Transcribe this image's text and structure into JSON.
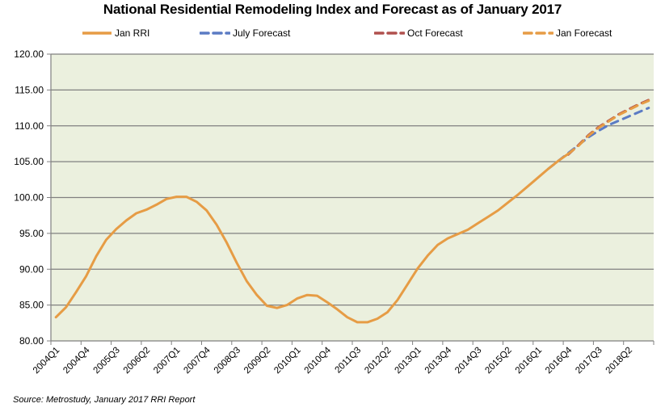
{
  "chart_data": {
    "type": "line",
    "title": "National Residential Remodeling Index and Forecast as of January 2017",
    "xlabel": "",
    "ylabel": "",
    "ylim": [
      80,
      120
    ],
    "yticks": [
      "80.00",
      "85.00",
      "90.00",
      "95.00",
      "100.00",
      "105.00",
      "110.00",
      "115.00",
      "120.00"
    ],
    "ytick_values": [
      80,
      85,
      90,
      95,
      100,
      105,
      110,
      115,
      120
    ],
    "grid": true,
    "legend_position": "top",
    "categories": [
      "2004Q1",
      "2004Q2",
      "2004Q3",
      "2004Q4",
      "2005Q1",
      "2005Q2",
      "2005Q3",
      "2005Q4",
      "2006Q1",
      "2006Q2",
      "2006Q3",
      "2006Q4",
      "2007Q1",
      "2007Q2",
      "2007Q3",
      "2007Q4",
      "2008Q1",
      "2008Q2",
      "2008Q3",
      "2008Q4",
      "2009Q1",
      "2009Q2",
      "2009Q3",
      "2009Q4",
      "2010Q1",
      "2010Q2",
      "2010Q3",
      "2010Q4",
      "2011Q1",
      "2011Q2",
      "2011Q3",
      "2011Q4",
      "2012Q1",
      "2012Q2",
      "2012Q3",
      "2012Q4",
      "2013Q1",
      "2013Q2",
      "2013Q3",
      "2013Q4",
      "2014Q1",
      "2014Q2",
      "2014Q3",
      "2014Q4",
      "2015Q1",
      "2015Q2",
      "2015Q3",
      "2015Q4",
      "2016Q1",
      "2016Q2",
      "2016Q3",
      "2016Q4",
      "2017Q1",
      "2017Q2",
      "2017Q3",
      "2017Q4",
      "2018Q1",
      "2018Q2",
      "2018Q3",
      "2018Q4"
    ],
    "xtick_labels": [
      "2004Q1",
      "2004Q4",
      "2005Q3",
      "2006Q2",
      "2007Q1",
      "2007Q4",
      "2008Q3",
      "2009Q2",
      "2010Q1",
      "2010Q4",
      "2011Q3",
      "2012Q2",
      "2013Q1",
      "2013Q4",
      "2014Q3",
      "2015Q2",
      "2016Q1",
      "2016Q4",
      "2017Q3",
      "2018Q2"
    ],
    "xtick_every": 3,
    "series": [
      {
        "name": "Jan RRI",
        "color": "#E69C45",
        "style": "solid",
        "start_index": 0,
        "values": [
          83.3,
          84.7,
          86.8,
          89.0,
          91.8,
          94.1,
          95.6,
          96.8,
          97.8,
          98.3,
          99.0,
          99.8,
          100.1,
          100.1,
          99.4,
          98.2,
          96.2,
          93.7,
          90.9,
          88.3,
          86.4,
          84.9,
          84.6,
          85.0,
          85.9,
          86.4,
          86.3,
          85.4,
          84.4,
          83.3,
          82.6,
          82.6,
          83.1,
          84.0,
          85.7,
          87.9,
          90.1,
          91.9,
          93.4,
          94.3,
          94.9,
          95.5,
          96.4,
          97.3,
          98.2,
          99.3,
          100.4,
          101.6,
          102.8,
          104.0,
          105.1,
          106.1
        ]
      },
      {
        "name": "July Forecast",
        "color": "#5B7BC4",
        "style": "dashed",
        "start_index": 49,
        "values": [
          104.0,
          105.1,
          106.2,
          107.3,
          108.4,
          109.3,
          110.1,
          110.7,
          111.3,
          111.9,
          112.5
        ]
      },
      {
        "name": "Oct Forecast",
        "color": "#B0504D",
        "style": "dashed",
        "start_index": 51,
        "values": [
          106.0,
          107.3,
          108.7,
          109.8,
          110.7,
          111.6,
          112.3,
          113.0,
          113.6
        ]
      },
      {
        "name": "Jan Forecast",
        "color": "#E69C45",
        "style": "dashed",
        "start_index": 51,
        "values": [
          106.1,
          107.2,
          108.6,
          109.7,
          110.6,
          111.5,
          112.2,
          112.9,
          113.5
        ]
      }
    ],
    "colors": {
      "plot_background": "#EBF0DE",
      "gridline": "#808080",
      "axis": "#808080"
    }
  },
  "source": "Source:  Metrostudy, January 2017 RRI Report"
}
